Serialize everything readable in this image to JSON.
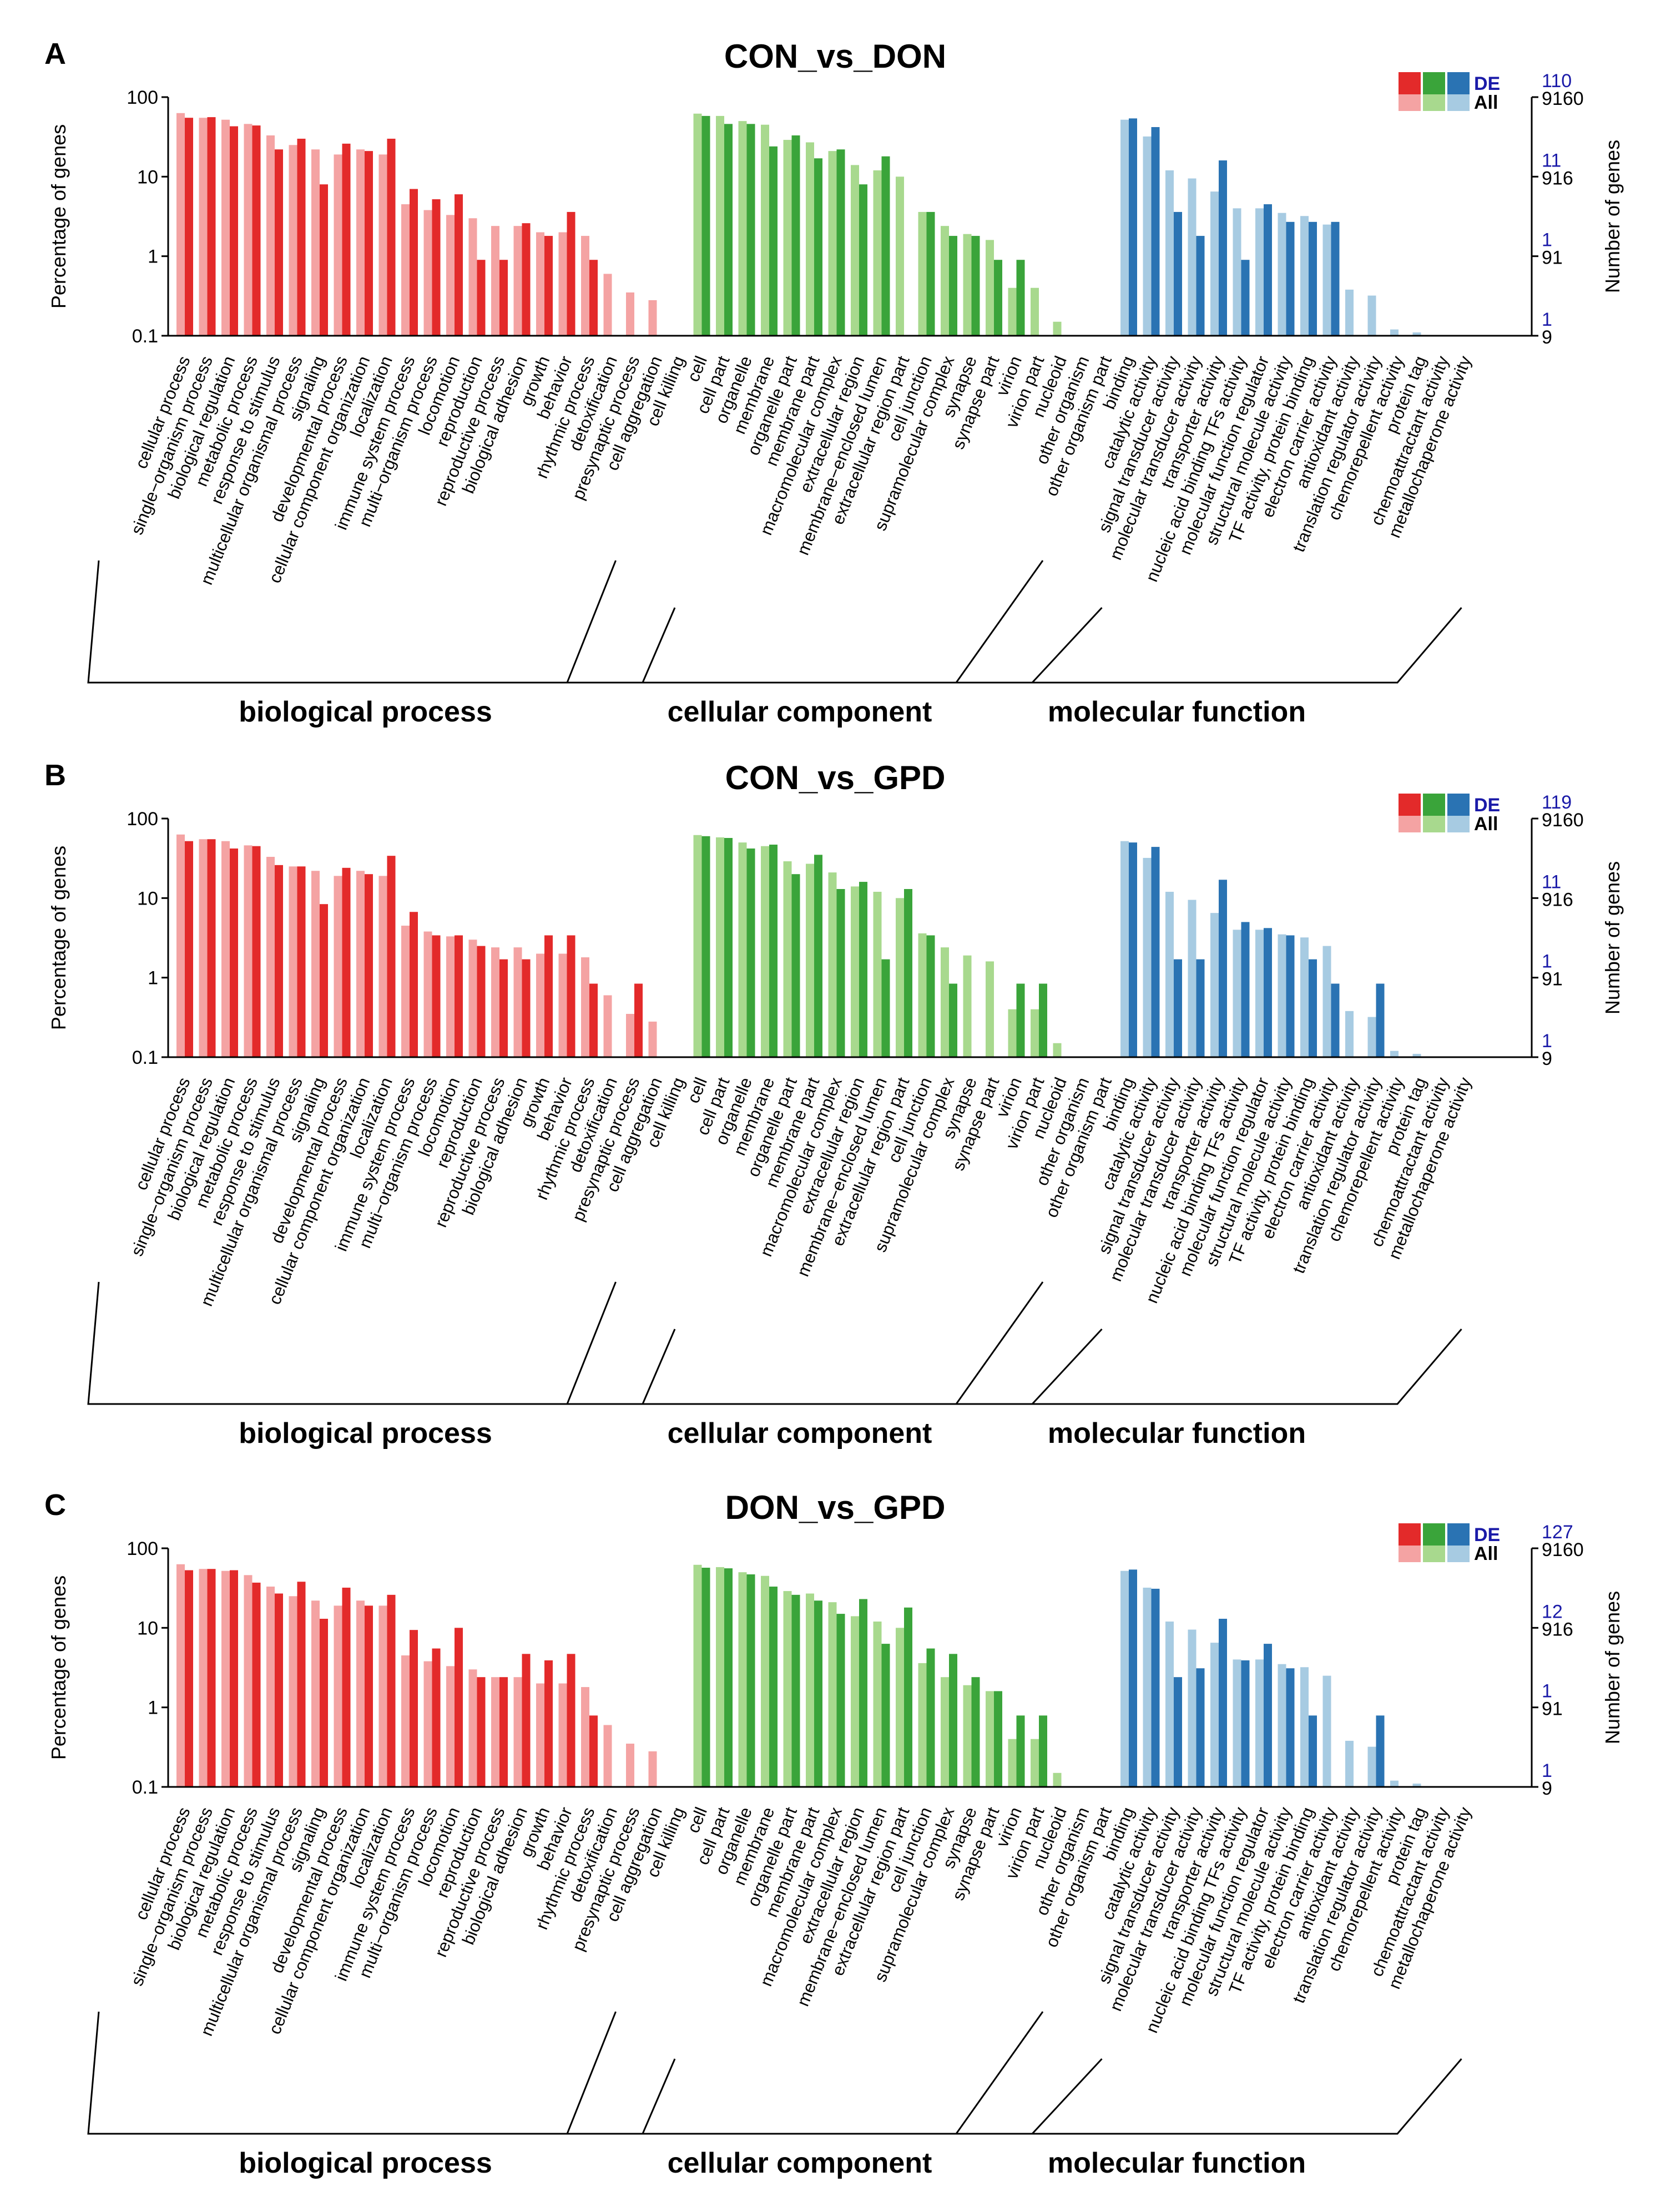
{
  "colors": {
    "bp_de": "#e32a2a",
    "bp_all": "#f4a3a3",
    "cc_de": "#3aa43a",
    "cc_all": "#a8d98e",
    "mf_de": "#2a73b3",
    "mf_all": "#a7cbe2",
    "right_axis_de": "#1a1aa8",
    "axis": "#000000"
  },
  "legend": {
    "de_label": "DE",
    "all_label": "All"
  },
  "axes": {
    "ylabel_left": "Percentage of genes",
    "ylabel_right": "Number of genes",
    "left_ticks": [
      "0.1",
      "1",
      "10",
      "100"
    ],
    "right_all_ticks": [
      "9",
      "91",
      "916",
      "9160"
    ]
  },
  "categories": [
    "cellular process",
    "single−organism process",
    "biological regulation",
    "metabolic process",
    "response to stimulus",
    "multicellular organismal process",
    "signaling",
    "developmental process",
    "cellular component organization",
    "localization",
    "immune system process",
    "multi−organism process",
    "locomotion",
    "reproduction",
    "reproductive process",
    "biological adhesion",
    "growth",
    "behavior",
    "rhythmic process",
    "detoxification",
    "presynaptic process",
    "cell aggregation",
    "cell killing",
    "cell",
    "cell part",
    "organelle",
    "membrane",
    "organelle part",
    "membrane part",
    "macromolecular complex",
    "extracellular region",
    "membrane−enclosed lumen",
    "extracellular region part",
    "cell junction",
    "supramolecular complex",
    "synapse",
    "synapse part",
    "virion",
    "virion part",
    "nucleoid",
    "other organism",
    "other organism part",
    "binding",
    "catalytic activity",
    "signal transducer activity",
    "molecular transducer activity",
    "transporter activity",
    "nucleic acid binding TFs activity",
    "molecular function regulator",
    "structural molecule activity",
    "TF activity, protein binding",
    "electron carrier activity",
    "antioxidant activity",
    "translation regulator activity",
    "chemorepellent activity",
    "protein tag",
    "chemoattractant activity",
    "metallochaperone activity"
  ],
  "groups": [
    {
      "key": "bp",
      "label": "biological process",
      "start": 0,
      "count": 23
    },
    {
      "key": "cc",
      "label": "cellular component",
      "start": 23,
      "count": 19
    },
    {
      "key": "mf",
      "label": "molecular function",
      "start": 42,
      "count": 16
    }
  ],
  "panels": [
    {
      "letter": "A",
      "title": "CON_vs_DON"
    },
    {
      "letter": "B",
      "title": "CON_vs_GPD"
    },
    {
      "letter": "C",
      "title": "DON_vs_GPD"
    }
  ],
  "chart_data": [
    {
      "type": "bar",
      "title": "CON_vs_DON",
      "ylabel": "Percentage of genes",
      "y2label": "Number of genes",
      "yscale": "log",
      "ylim": [
        0.1,
        100
      ],
      "right_axis_de_ticks": [
        "1",
        "1",
        "11",
        "110"
      ],
      "right_axis_all_ticks": [
        "9",
        "91",
        "916",
        "9160"
      ],
      "series": [
        {
          "name": "All",
          "values": [
            63,
            55,
            52,
            46,
            33,
            25,
            22,
            19,
            22,
            19,
            4.5,
            3.8,
            3.3,
            3.0,
            2.4,
            2.4,
            2.0,
            2.0,
            1.8,
            0.6,
            0.35,
            0.28,
            0,
            62,
            58,
            50,
            45,
            29,
            27,
            21,
            14,
            12,
            10,
            3.6,
            2.4,
            1.9,
            1.6,
            0.4,
            0.4,
            0.15,
            0,
            0,
            52,
            32,
            12,
            9.5,
            6.5,
            4,
            4,
            3.5,
            3.2,
            2.5,
            0.38,
            0.32,
            0.12,
            0.11,
            0,
            0
          ]
        },
        {
          "name": "DE",
          "values": [
            55,
            56,
            43,
            44,
            22,
            30,
            8,
            26,
            21,
            30,
            7,
            5.2,
            6,
            0.9,
            0.9,
            2.6,
            1.8,
            3.6,
            0.9,
            0,
            0,
            0,
            0,
            58,
            46,
            46,
            24,
            33,
            17,
            22,
            8,
            18,
            0,
            3.6,
            1.8,
            1.8,
            0.9,
            0.9,
            0,
            0,
            0,
            0,
            54,
            42,
            3.6,
            1.8,
            16,
            0.9,
            4.5,
            2.7,
            2.7,
            2.7,
            0,
            0,
            0,
            0,
            0,
            0
          ]
        }
      ]
    },
    {
      "type": "bar",
      "title": "CON_vs_GPD",
      "ylabel": "Percentage of genes",
      "y2label": "Number of genes",
      "yscale": "log",
      "ylim": [
        0.1,
        100
      ],
      "right_axis_de_ticks": [
        "1",
        "1",
        "11",
        "119"
      ],
      "right_axis_all_ticks": [
        "9",
        "91",
        "916",
        "9160"
      ],
      "series": [
        {
          "name": "All",
          "values": [
            63,
            55,
            52,
            46,
            33,
            25,
            22,
            19,
            22,
            19,
            4.5,
            3.8,
            3.3,
            3.0,
            2.4,
            2.4,
            2.0,
            2.0,
            1.8,
            0.6,
            0.35,
            0.28,
            0,
            62,
            58,
            50,
            45,
            29,
            27,
            21,
            14,
            12,
            10,
            3.6,
            2.4,
            1.9,
            1.6,
            0.4,
            0.4,
            0.15,
            0,
            0,
            52,
            32,
            12,
            9.5,
            6.5,
            4,
            4,
            3.5,
            3.2,
            2.5,
            0.38,
            0.32,
            0.12,
            0.11,
            0,
            0
          ]
        },
        {
          "name": "DE",
          "values": [
            52,
            55,
            42,
            45,
            26,
            25,
            8.4,
            24,
            20,
            34,
            6.7,
            3.4,
            3.4,
            2.5,
            1.7,
            1.7,
            3.4,
            3.4,
            0.84,
            0,
            0.84,
            0,
            0,
            60,
            57,
            42,
            47,
            20,
            35,
            13,
            16,
            1.7,
            13,
            3.4,
            0.84,
            0,
            0,
            0.84,
            0.84,
            0,
            0,
            0,
            50,
            44,
            1.7,
            1.7,
            17,
            5,
            4.2,
            3.4,
            1.7,
            0.84,
            0,
            0.84,
            0,
            0,
            0,
            0
          ]
        }
      ]
    },
    {
      "type": "bar",
      "title": "DON_vs_GPD",
      "ylabel": "Percentage of genes",
      "y2label": "Number of genes",
      "yscale": "log",
      "ylim": [
        0.1,
        100
      ],
      "right_axis_de_ticks": [
        "1",
        "1",
        "12",
        "127"
      ],
      "right_axis_all_ticks": [
        "9",
        "91",
        "916",
        "9160"
      ],
      "series": [
        {
          "name": "All",
          "values": [
            63,
            55,
            52,
            46,
            33,
            25,
            22,
            19,
            22,
            19,
            4.5,
            3.8,
            3.3,
            3.0,
            2.4,
            2.4,
            2.0,
            2.0,
            1.8,
            0.6,
            0.35,
            0.28,
            0,
            62,
            58,
            50,
            45,
            29,
            27,
            21,
            14,
            12,
            10,
            3.6,
            2.4,
            1.9,
            1.6,
            0.4,
            0.4,
            0.15,
            0,
            0,
            52,
            32,
            12,
            9.5,
            6.5,
            4,
            4,
            3.5,
            3.2,
            2.5,
            0.38,
            0.32,
            0.12,
            0.11,
            0,
            0
          ]
        },
        {
          "name": "DE",
          "values": [
            53,
            55,
            53,
            37,
            27,
            38,
            13,
            32,
            19,
            26,
            9.4,
            5.5,
            10,
            2.4,
            2.4,
            4.7,
            3.9,
            4.7,
            0.79,
            0,
            0,
            0,
            0,
            57,
            56,
            47,
            33,
            26,
            22,
            15,
            23,
            6.3,
            18,
            5.5,
            4.7,
            2.4,
            1.6,
            0.79,
            0.79,
            0,
            0,
            0,
            54,
            31,
            2.4,
            3.1,
            13,
            3.9,
            6.3,
            3.1,
            0.79,
            0,
            0,
            0.79,
            0,
            0,
            0,
            0
          ]
        }
      ]
    }
  ]
}
